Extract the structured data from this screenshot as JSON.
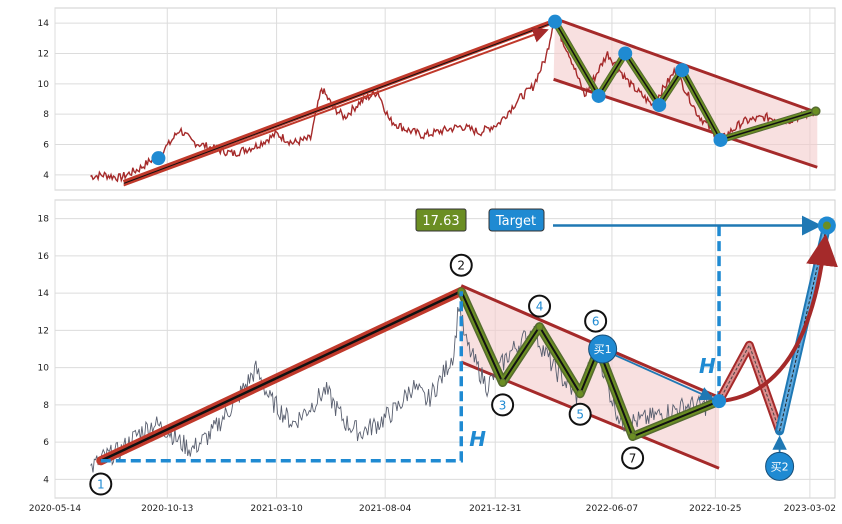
{
  "chart_data": [
    {
      "type": "line",
      "panel": "top",
      "ylim": [
        3,
        15
      ],
      "yticks": [
        4,
        6,
        8,
        10,
        12,
        14
      ],
      "xlim": [
        "2020-05-14",
        "2023-04-05"
      ],
      "grid": true,
      "series": [
        {
          "color": "#a52a2a",
          "points": [
            [
              "2020-07-01",
              3.9
            ],
            [
              "2020-07-20",
              4.0
            ],
            [
              "2020-08-10",
              3.8
            ],
            [
              "2020-09-05",
              4.4
            ],
            [
              "2020-09-25",
              5.1
            ],
            [
              "2020-10-15",
              6.0
            ],
            [
              "2020-10-30",
              7.0
            ],
            [
              "2020-11-15",
              6.2
            ],
            [
              "2020-12-10",
              5.8
            ],
            [
              "2021-01-10",
              5.4
            ],
            [
              "2021-02-10",
              5.9
            ],
            [
              "2021-03-10",
              6.7
            ],
            [
              "2021-04-01",
              6.1
            ],
            [
              "2021-04-25",
              6.4
            ],
            [
              "2021-05-10",
              9.7
            ],
            [
              "2021-05-25",
              8.5
            ],
            [
              "2021-06-10",
              7.8
            ],
            [
              "2021-07-01",
              8.8
            ],
            [
              "2021-07-25",
              9.5
            ],
            [
              "2021-08-10",
              7.6
            ],
            [
              "2021-09-01",
              7.0
            ],
            [
              "2021-09-25",
              6.6
            ],
            [
              "2021-10-20",
              6.9
            ],
            [
              "2021-11-15",
              7.2
            ],
            [
              "2021-12-10",
              6.8
            ],
            [
              "2022-01-05",
              7.4
            ],
            [
              "2022-02-01",
              9.0
            ],
            [
              "2022-02-20",
              9.8
            ],
            [
              "2022-03-10",
              11.8
            ],
            [
              "2022-03-20",
              14.1
            ],
            [
              "2022-04-10",
              12.0
            ],
            [
              "2022-05-01",
              9.2
            ],
            [
              "2022-06-01",
              12.0
            ],
            [
              "2022-07-01",
              10.0
            ],
            [
              "2022-08-01",
              8.6
            ],
            [
              "2022-09-01",
              10.9
            ],
            [
              "2022-10-01",
              8.0
            ],
            [
              "2022-11-01",
              6.3
            ],
            [
              "2022-12-01",
              7.5
            ],
            [
              "2023-01-01",
              7.8
            ],
            [
              "2023-02-01",
              7.6
            ],
            [
              "2023-03-10",
              8.2
            ]
          ]
        }
      ],
      "pattern_points": [
        [
          "2020-10-01",
          5.1
        ],
        [
          "2022-03-22",
          14.1
        ],
        [
          "2022-05-20",
          9.2
        ],
        [
          "2022-06-25",
          12.0
        ],
        [
          "2022-08-10",
          8.6
        ],
        [
          "2022-09-10",
          10.9
        ],
        [
          "2022-11-01",
          6.3
        ],
        [
          "2023-03-10",
          8.2
        ]
      ]
    },
    {
      "type": "line",
      "panel": "bottom",
      "ylim": [
        3,
        19
      ],
      "yticks": [
        4,
        6,
        8,
        10,
        12,
        14,
        16,
        18
      ],
      "xticks": [
        "2020-05-14",
        "2020-10-13",
        "2021-03-10",
        "2021-08-04",
        "2021-12-31",
        "2022-06-07",
        "2022-10-25",
        "2023-03-02"
      ],
      "xlim": [
        "2020-05-14",
        "2023-04-05"
      ],
      "grid": true,
      "series": [
        {
          "color": "#5a6070",
          "points": [
            [
              "2020-07-01",
              4.6
            ],
            [
              "2020-07-20",
              5.2
            ],
            [
              "2020-08-10",
              5.5
            ],
            [
              "2020-09-05",
              6.5
            ],
            [
              "2020-09-25",
              7.0
            ],
            [
              "2020-10-15",
              6.6
            ],
            [
              "2020-10-30",
              6.0
            ],
            [
              "2020-11-15",
              5.6
            ],
            [
              "2020-12-10",
              6.4
            ],
            [
              "2021-01-10",
              8.0
            ],
            [
              "2021-02-10",
              9.9
            ],
            [
              "2021-03-01",
              8.3
            ],
            [
              "2021-04-01",
              7.0
            ],
            [
              "2021-04-25",
              7.9
            ],
            [
              "2021-05-15",
              8.8
            ],
            [
              "2021-06-10",
              7.1
            ],
            [
              "2021-07-01",
              6.5
            ],
            [
              "2021-07-25",
              7.0
            ],
            [
              "2021-08-20",
              7.8
            ],
            [
              "2021-09-10",
              9.0
            ],
            [
              "2021-09-30",
              8.2
            ],
            [
              "2021-10-20",
              9.5
            ],
            [
              "2021-11-05",
              10.8
            ],
            [
              "2021-11-12",
              13.5
            ],
            [
              "2021-11-20",
              11.5
            ],
            [
              "2021-12-01",
              10.5
            ],
            [
              "2021-12-20",
              9.0
            ],
            [
              "2022-01-20",
              10.8
            ],
            [
              "2022-02-20",
              12.0
            ],
            [
              "2022-03-20",
              10.0
            ],
            [
              "2022-04-20",
              8.5
            ],
            [
              "2022-05-20",
              10.9
            ],
            [
              "2022-06-01",
              9.0
            ],
            [
              "2022-06-20",
              7.0
            ],
            [
              "2022-07-20",
              7.2
            ],
            [
              "2022-08-20",
              7.6
            ],
            [
              "2022-09-20",
              8.0
            ],
            [
              "2022-10-10",
              7.9
            ],
            [
              "2022-10-25",
              8.3
            ]
          ]
        }
      ],
      "pattern_points": [
        [
          "2020-07-15",
          5.0
        ],
        [
          "2021-11-15",
          14.1
        ],
        [
          "2022-01-10",
          9.2
        ],
        [
          "2022-03-01",
          12.2
        ],
        [
          "2022-04-25",
          8.6
        ],
        [
          "2022-05-20",
          11.0
        ],
        [
          "2022-07-05",
          6.3
        ],
        [
          "2022-10-30",
          8.2
        ]
      ],
      "projection": {
        "peak": [
          "2022-12-10",
          11.2
        ],
        "pullback": [
          "2023-01-20",
          6.6
        ],
        "target": [
          "2023-03-25",
          17.63
        ]
      },
      "target_value": "17.63",
      "target_label": "Target",
      "h_label": "H",
      "wave_labels": [
        "1",
        "2",
        "3",
        "4",
        "5",
        "6",
        "7"
      ],
      "buy_labels": [
        "买1",
        "买2"
      ],
      "colors": {
        "trend": "#c0392b",
        "zigzag": "#6b8e23",
        "channel": "#a52a2a",
        "fill": "#f4cccc",
        "marker": "#1f8ad2",
        "target_box": "#6b8e23",
        "target_btn": "#1f8ad2",
        "dash": "#1f8ad2"
      }
    }
  ]
}
